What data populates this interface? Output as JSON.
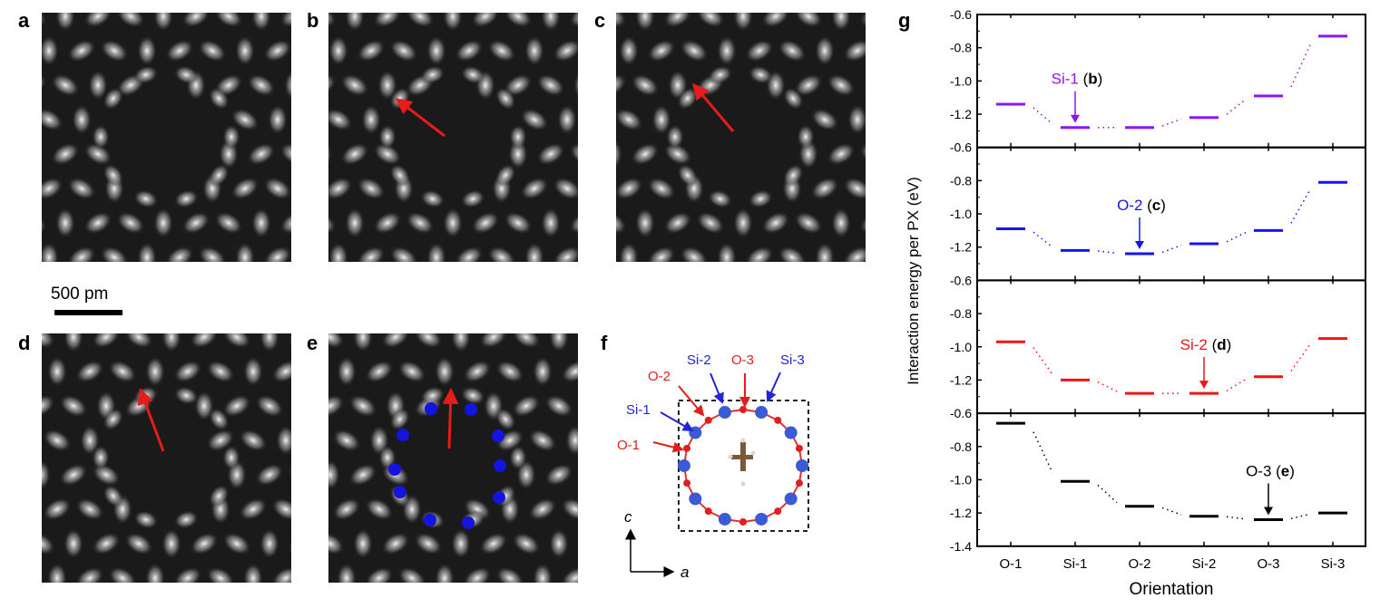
{
  "panels": {
    "a": "a",
    "b": "b",
    "c": "c",
    "d": "d",
    "e": "e",
    "f": "f",
    "g": "g"
  },
  "scale_bar": "500 pm",
  "structure": {
    "labels": [
      {
        "text": "Si-1",
        "color": "#2323d8"
      },
      {
        "text": "O-2",
        "color": "#e81b1b"
      },
      {
        "text": "Si-2",
        "color": "#2323d8"
      },
      {
        "text": "O-3",
        "color": "#e81b1b"
      },
      {
        "text": "Si-3",
        "color": "#2323d8"
      },
      {
        "text": "O-1",
        "color": "#e81b1b"
      }
    ],
    "axis_c": "c",
    "axis_a": "a"
  },
  "colors": {
    "arrow": "#e81b1b",
    "dot": "#1414e0",
    "si": "#3b5bd6",
    "o": "#e02020"
  },
  "chart_data": {
    "type": "line",
    "categories": [
      "O-1",
      "Si-1",
      "O-2",
      "Si-2",
      "O-3",
      "Si-3"
    ],
    "xlabel": "Orientation",
    "ylabel": "Interaction energy per PX (eV)",
    "ylim": [
      -1.4,
      -0.6
    ],
    "yticks": [
      "-0.6",
      "-0.8",
      "-1.0",
      "-1.2",
      "-1.4"
    ],
    "stacked_panels": true,
    "series": [
      {
        "color": "#8a17f0",
        "values": [
          -1.14,
          -1.28,
          -1.28,
          -1.22,
          -1.09,
          -0.73
        ],
        "annotation": {
          "label": "Si-1",
          "panel": "b",
          "category": "Si-1"
        }
      },
      {
        "color": "#1414f0",
        "values": [
          -1.09,
          -1.22,
          -1.24,
          -1.18,
          -1.1,
          -0.81
        ],
        "annotation": {
          "label": "O-2",
          "panel": "c",
          "category": "O-2"
        }
      },
      {
        "color": "#f01414",
        "values": [
          -0.97,
          -1.2,
          -1.28,
          -1.28,
          -1.18,
          -0.95
        ],
        "annotation": {
          "label": "Si-2",
          "panel": "d",
          "category": "Si-2"
        }
      },
      {
        "color": "#000000",
        "values": [
          -0.66,
          -1.01,
          -1.16,
          -1.22,
          -1.24,
          -1.2
        ],
        "annotation": {
          "label": "O-3",
          "panel": "e",
          "category": "O-3"
        }
      }
    ]
  }
}
